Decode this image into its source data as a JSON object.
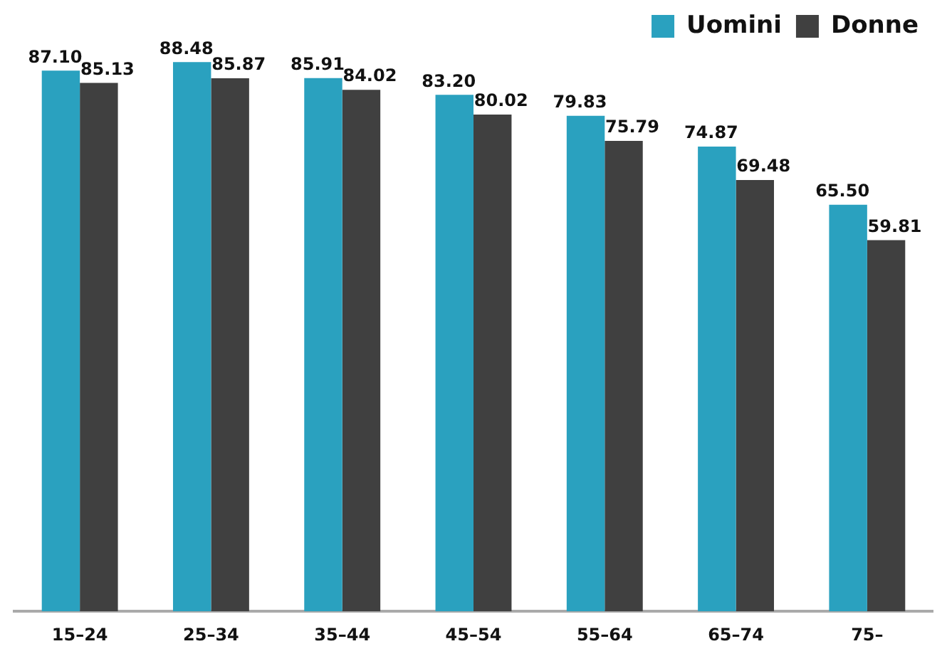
{
  "chart_data": {
    "type": "bar",
    "categories": [
      "15–24",
      "25–34",
      "35–44",
      "45–54",
      "55–64",
      "65–74",
      "75–"
    ],
    "series": [
      {
        "name": "Uomini",
        "color": "#2aa1bf",
        "values": [
          87.1,
          88.48,
          85.91,
          83.2,
          79.83,
          74.87,
          65.5
        ],
        "value_labels": [
          "87.10",
          "88.48",
          "85.91",
          "83.20",
          "79.83",
          "74.87",
          "65.50"
        ]
      },
      {
        "name": "Donne",
        "color": "#404040",
        "values": [
          85.13,
          85.87,
          84.02,
          80.02,
          75.79,
          69.48,
          59.81
        ],
        "value_labels": [
          "85.13",
          "85.87",
          "84.02",
          "80.02",
          "75.79",
          "69.48",
          "59.81"
        ]
      }
    ],
    "legend": "top right",
    "grid": false,
    "tick_labels": "x"
  }
}
